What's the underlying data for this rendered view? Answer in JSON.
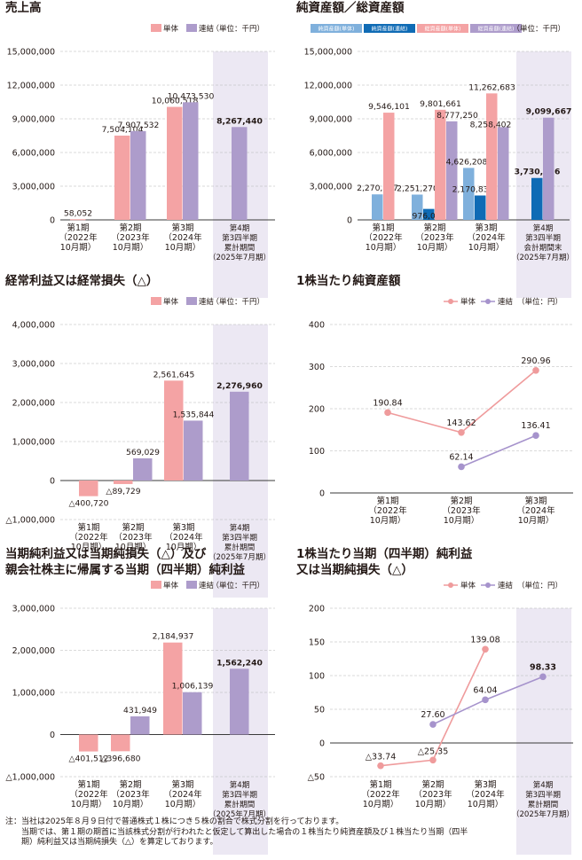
{
  "colors": {
    "single": "#f4a3a4",
    "consolidated": "#ad9ccb",
    "na_single": "#7fb0dc",
    "na_consolidated": "#0f6bb5",
    "ta_single": "#f4a3a4",
    "ta_consolidated": "#ad9ccb",
    "shade": "#ece8f3",
    "grid": "#b5b5b5",
    "line_single": "#ef9b9c",
    "line_consolidated": "#a693cc"
  },
  "note": {
    "label": "注：",
    "lines": [
      "当社は2025年８月９日付で普通株式１株につき５株の割合で株式分割を行っております。",
      "当期では、第１期の期首に当該株式分割が行われたと仮定して算出した場合の１株当たり純資産額及び１株当たり当期（四半",
      "期）純利益又は当期純損失（△）を算定しております。"
    ]
  },
  "chart_data": [
    {
      "type": "bar",
      "title": [
        "売上高"
      ],
      "legend": [
        {
          "name": "単体",
          "color_key": "single"
        },
        {
          "name": "連結",
          "color_key": "consolidated"
        }
      ],
      "unit": "（単位：千円）",
      "ylim": [
        0,
        15000000
      ],
      "yticks": [
        0,
        3000000,
        6000000,
        9000000,
        12000000,
        15000000
      ],
      "ytick_labels": [
        "0",
        "3,000,000",
        "6,000,000",
        "9,000,000",
        "12,000,000",
        "15,000,000"
      ],
      "categories": [
        [
          "第1期",
          "（2022年",
          "10月期）"
        ],
        [
          "第2期",
          "（2023年",
          "10月期）"
        ],
        [
          "第3期",
          "（2024年",
          "10月期）"
        ],
        [
          "第4期",
          "第3四半期",
          "累計期間",
          "（2025年7月期）"
        ]
      ],
      "shaded_category": 3,
      "series": [
        {
          "name": "単体",
          "color_key": "single",
          "values": [
            58052,
            7504104,
            10060518,
            null
          ],
          "labels": [
            "58,052",
            "7,504,104",
            "10,060,518",
            ""
          ]
        },
        {
          "name": "連結",
          "color_key": "consolidated",
          "values": [
            null,
            7907532,
            10473530,
            8267440
          ],
          "labels": [
            "",
            "7,907,532",
            "10,473,530",
            "8,267,440"
          ]
        }
      ]
    },
    {
      "type": "bar",
      "title": [
        "純資産額／総資産額"
      ],
      "legend": [
        {
          "name": "純資産額(単体)",
          "color_key": "na_single"
        },
        {
          "name": "純資産額(連結)",
          "color_key": "na_consolidated"
        },
        {
          "name": "総資産額(単体)",
          "color_key": "ta_single"
        },
        {
          "name": "総資産額(連結)",
          "color_key": "ta_consolidated"
        }
      ],
      "unit": "（単位：千円）",
      "ylim": [
        0,
        15000000
      ],
      "yticks": [
        0,
        3000000,
        6000000,
        9000000,
        12000000,
        15000000
      ],
      "ytick_labels": [
        "0",
        "3,000,000",
        "6,000,000",
        "9,000,000",
        "12,000,000",
        "15,000,000"
      ],
      "categories": [
        [
          "第1期",
          "（2022年",
          "10月期）"
        ],
        [
          "第2期",
          "（2023年",
          "10月期）"
        ],
        [
          "第3期",
          "（2024年",
          "10月期）"
        ],
        [
          "第4期",
          "第3四半期",
          "会計期間末",
          "（2025年7月期）"
        ]
      ],
      "shaded_category": 3,
      "series": [
        {
          "name": "純資産額(単体)",
          "color_key": "na_single",
          "values": [
            2270987,
            2251270,
            4626208,
            null
          ],
          "labels": [
            "2,270,987",
            "2,251,270",
            "4,626,208",
            ""
          ]
        },
        {
          "name": "純資産額(連結)",
          "color_key": "na_consolidated",
          "values": [
            null,
            976082,
            2170830,
            3730426
          ],
          "labels": [
            "",
            "976,082",
            "2,170,830",
            "3,730,426"
          ]
        },
        {
          "name": "総資産額(単体)",
          "color_key": "ta_single",
          "values": [
            9546101,
            9801661,
            11262683,
            null
          ],
          "labels": [
            "9,546,101",
            "9,801,661",
            "11,262,683",
            ""
          ]
        },
        {
          "name": "総資産額(連結)",
          "color_key": "ta_consolidated",
          "values": [
            null,
            8777250,
            8258402,
            9099667
          ],
          "labels": [
            "",
            "8,777,250",
            "8,258,402",
            "9,099,667"
          ]
        }
      ]
    },
    {
      "type": "bar",
      "title": [
        "経常利益又は経常損失（△）"
      ],
      "legend": [
        {
          "name": "単体",
          "color_key": "single"
        },
        {
          "name": "連結",
          "color_key": "consolidated"
        }
      ],
      "unit": "（単位：千円）",
      "ylim": [
        -1000000,
        4000000
      ],
      "yticks": [
        -1000000,
        0,
        1000000,
        2000000,
        3000000,
        4000000
      ],
      "ytick_labels": [
        "△1,000,000",
        "0",
        "1,000,000",
        "2,000,000",
        "3,000,000",
        "4,000,000"
      ],
      "categories": [
        [
          "第1期",
          "（2022年",
          "10月期）"
        ],
        [
          "第2期",
          "（2023年",
          "10月期）"
        ],
        [
          "第3期",
          "（2024年",
          "10月期）"
        ],
        [
          "第4期",
          "第3四半期",
          "累計期間",
          "（2025年7月期）"
        ]
      ],
      "shaded_category": 3,
      "series": [
        {
          "name": "単体",
          "color_key": "single",
          "values": [
            -400720,
            -89729,
            2561645,
            null
          ],
          "labels": [
            "△400,720",
            "△89,729",
            "2,561,645",
            ""
          ]
        },
        {
          "name": "連結",
          "color_key": "consolidated",
          "values": [
            null,
            569029,
            1535844,
            2276960
          ],
          "labels": [
            "",
            "569,029",
            "1,535,844",
            "2,276,960"
          ]
        }
      ]
    },
    {
      "type": "line",
      "title": [
        "1株当たり純資産額"
      ],
      "legend": [
        {
          "name": "単体",
          "color_key": "line_single"
        },
        {
          "name": "連結",
          "color_key": "line_consolidated"
        }
      ],
      "unit": "（単位：円）",
      "ylim": [
        0,
        400
      ],
      "yticks": [
        0,
        100,
        200,
        300,
        400
      ],
      "ytick_labels": [
        "0",
        "100",
        "200",
        "300",
        "400"
      ],
      "categories": [
        [
          "第1期",
          "（2022年",
          "10月期）"
        ],
        [
          "第2期",
          "（2023年",
          "10月期）"
        ],
        [
          "第3期",
          "（2024年",
          "10月期）"
        ]
      ],
      "shaded_category": null,
      "series": [
        {
          "name": "単体",
          "color_key": "line_single",
          "values": [
            190.84,
            143.62,
            290.96
          ],
          "labels": [
            "190.84",
            "143.62",
            "290.96"
          ]
        },
        {
          "name": "連結",
          "color_key": "line_consolidated",
          "values": [
            null,
            62.14,
            136.41
          ],
          "labels": [
            "",
            "62.14",
            "136.41"
          ]
        }
      ]
    },
    {
      "type": "bar",
      "title": [
        "当期純利益又は当期純損失（△）及び",
        "親会社株主に帰属する当期（四半期）純利益"
      ],
      "legend": [
        {
          "name": "単体",
          "color_key": "single"
        },
        {
          "name": "連結",
          "color_key": "consolidated"
        }
      ],
      "unit": "（単位：千円）",
      "ylim": [
        -1000000,
        3000000
      ],
      "yticks": [
        -1000000,
        0,
        1000000,
        2000000,
        3000000
      ],
      "ytick_labels": [
        "△1,000,000",
        "0",
        "1,000,000",
        "2,000,000",
        "3,000,000"
      ],
      "categories": [
        [
          "第1期",
          "（2022年",
          "10月期）"
        ],
        [
          "第2期",
          "（2023年",
          "10月期）"
        ],
        [
          "第3期",
          "（2024年",
          "10月期）"
        ],
        [
          "第4期",
          "第3四半期",
          "累計期間",
          "（2025年7月期）"
        ]
      ],
      "shaded_category": 3,
      "series": [
        {
          "name": "単体",
          "color_key": "single",
          "values": [
            -401512,
            -396680,
            2184937,
            null
          ],
          "labels": [
            "△401,512",
            "△396,680",
            "2,184,937",
            ""
          ]
        },
        {
          "name": "連結",
          "color_key": "consolidated",
          "values": [
            null,
            431949,
            1006139,
            1562240
          ],
          "labels": [
            "",
            "431,949",
            "1,006,139",
            "1,562,240"
          ]
        }
      ]
    },
    {
      "type": "line",
      "title": [
        "1株当たり当期（四半期）純利益",
        "又は当期純損失（△）"
      ],
      "legend": [
        {
          "name": "単体",
          "color_key": "line_single"
        },
        {
          "name": "連結",
          "color_key": "line_consolidated"
        }
      ],
      "unit": "（単位：円）",
      "ylim": [
        -50,
        200
      ],
      "yticks": [
        -50,
        0,
        50,
        100,
        150,
        200
      ],
      "ytick_labels": [
        "△50",
        "0",
        "50",
        "100",
        "150",
        "200"
      ],
      "categories": [
        [
          "第1期",
          "（2022年",
          "10月期）"
        ],
        [
          "第2期",
          "（2023年",
          "10月期）"
        ],
        [
          "第3期",
          "（2024年",
          "10月期）"
        ],
        [
          "第4期",
          "第3四半期",
          "累計期間",
          "（2025年7月期）"
        ]
      ],
      "shaded_category": 3,
      "series": [
        {
          "name": "単体",
          "color_key": "line_single",
          "values": [
            -33.74,
            -25.35,
            139.08,
            null
          ],
          "labels": [
            "△33.74",
            "△25.35",
            "139.08",
            ""
          ]
        },
        {
          "name": "連結",
          "color_key": "line_consolidated",
          "values": [
            null,
            27.6,
            64.04,
            98.33
          ],
          "labels": [
            "",
            "27.60",
            "64.04",
            "98.33"
          ]
        }
      ]
    }
  ]
}
